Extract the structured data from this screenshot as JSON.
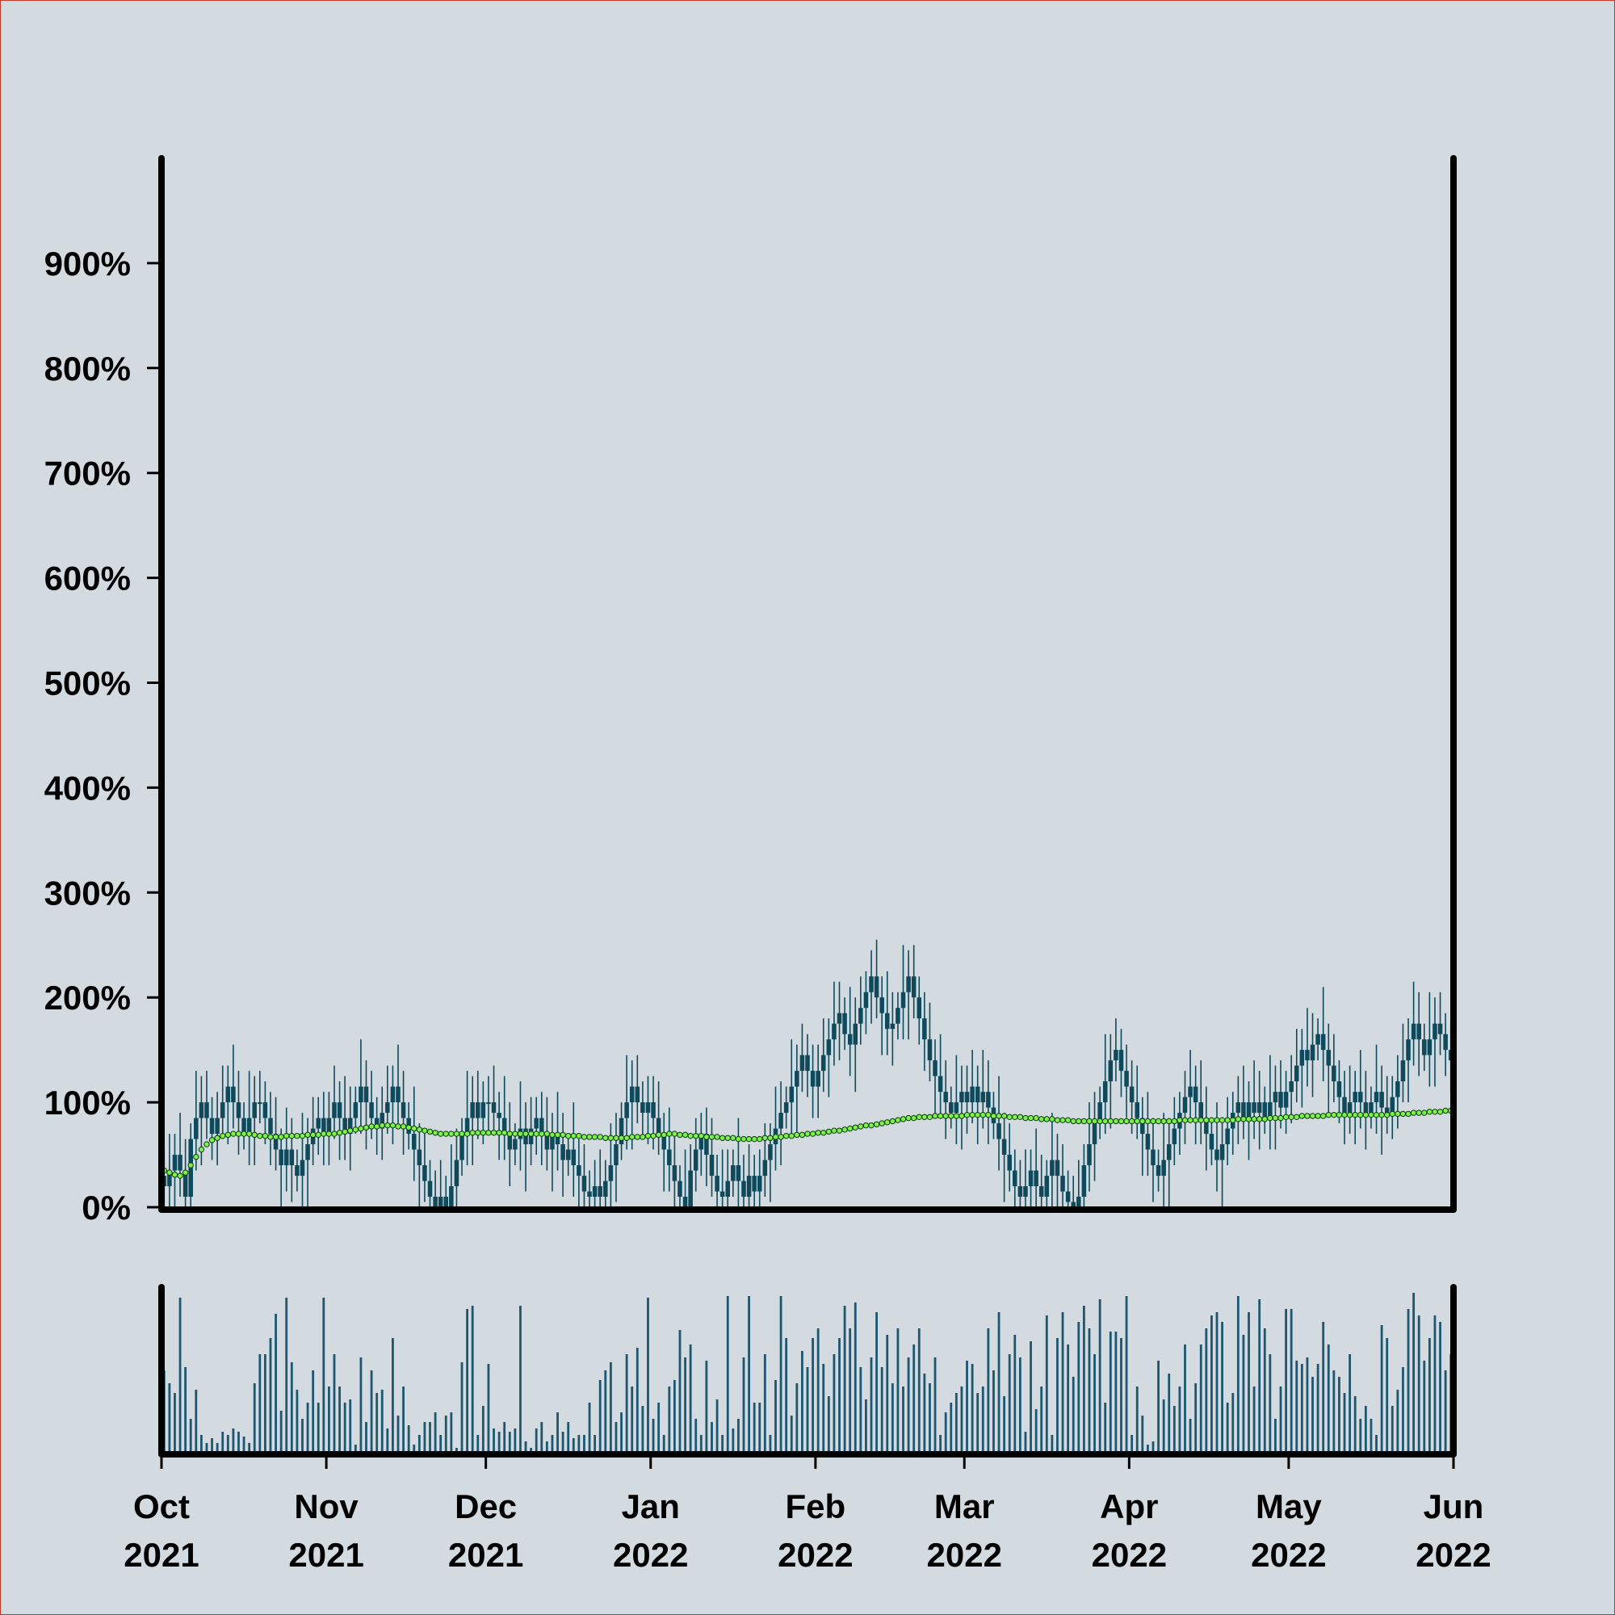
{
  "chart_data": {
    "type": "candlestick",
    "xlim": [
      "2021-10",
      "2022-06"
    ],
    "xticks": [
      {
        "value": "2021-10",
        "label": "Oct 2021"
      },
      {
        "value": "2021-11",
        "label": "Nov 2021"
      },
      {
        "value": "2021-12",
        "label": "Dec 2021"
      },
      {
        "value": "2022-01",
        "label": "Jan 2022"
      },
      {
        "value": "2022-02",
        "label": "Feb 2022"
      },
      {
        "value": "2022-03",
        "label": "Mar 2022"
      },
      {
        "value": "2022-04",
        "label": "Apr 2022"
      },
      {
        "value": "2022-05",
        "label": "May 2022"
      },
      {
        "value": "2022-06",
        "label": "Jun 2022"
      }
    ],
    "ylim": [
      0,
      1000
    ],
    "yticks": [
      {
        "value": 0,
        "label": "0%"
      },
      {
        "value": 100,
        "label": "100%"
      },
      {
        "value": 200,
        "label": "200%"
      },
      {
        "value": 300,
        "label": "300%"
      },
      {
        "value": 400,
        "label": "400%"
      },
      {
        "value": 500,
        "label": "500%"
      },
      {
        "value": 600,
        "label": "600%"
      },
      {
        "value": 700,
        "label": "700%"
      },
      {
        "value": 800,
        "label": "800%"
      },
      {
        "value": 900,
        "label": "900%"
      }
    ],
    "candles": {
      "color": "#0e4a5c",
      "open": [
        30,
        20,
        35,
        50,
        35,
        10,
        65,
        85,
        100,
        85,
        70,
        85,
        100,
        115,
        100,
        85,
        70,
        85,
        100,
        100,
        85,
        70,
        55,
        40,
        55,
        40,
        30,
        45,
        60,
        75,
        85,
        70,
        85,
        100,
        85,
        70,
        85,
        100,
        115,
        100,
        85,
        75,
        90,
        100,
        115,
        100,
        85,
        70,
        55,
        40,
        25,
        10,
        0,
        10,
        0,
        20,
        45,
        70,
        85,
        100,
        85,
        100,
        100,
        90,
        85,
        70,
        55,
        65,
        75,
        60,
        75,
        85,
        70,
        55,
        70,
        60,
        45,
        55,
        40,
        30,
        15,
        10,
        20,
        10,
        25,
        40,
        60,
        85,
        100,
        115,
        100,
        90,
        100,
        85,
        70,
        55,
        40,
        25,
        10,
        0,
        35,
        55,
        70,
        50,
        30,
        15,
        10,
        25,
        40,
        25,
        10,
        30,
        15,
        30,
        45,
        60,
        75,
        90,
        100,
        115,
        130,
        145,
        130,
        115,
        130,
        145,
        160,
        175,
        185,
        165,
        155,
        175,
        190,
        205,
        220,
        200,
        185,
        170,
        175,
        190,
        205,
        220,
        200,
        180,
        160,
        140,
        125,
        110,
        100,
        90,
        100,
        110,
        100,
        115,
        100,
        110,
        95,
        80,
        65,
        50,
        35,
        20,
        10,
        20,
        35,
        20,
        10,
        30,
        45,
        30,
        15,
        5,
        0,
        10,
        40,
        60,
        80,
        100,
        120,
        140,
        150,
        130,
        115,
        100,
        85,
        70,
        55,
        40,
        30,
        45,
        60,
        75,
        90,
        105,
        115,
        100,
        85,
        70,
        55,
        45,
        60,
        75,
        90,
        100,
        85,
        100,
        90,
        100,
        85,
        100,
        110,
        95,
        110,
        120,
        135,
        150,
        140,
        155,
        165,
        150,
        135,
        120,
        105,
        90,
        100,
        110,
        100,
        90,
        100,
        110,
        95,
        90,
        105,
        120,
        140,
        160,
        175,
        160,
        145,
        160,
        175,
        165,
        150
      ],
      "high": [
        55,
        70,
        70,
        90,
        65,
        80,
        130,
        125,
        130,
        105,
        110,
        135,
        135,
        155,
        130,
        100,
        130,
        125,
        130,
        120,
        110,
        105,
        75,
        95,
        85,
        55,
        90,
        85,
        105,
        105,
        110,
        110,
        135,
        120,
        125,
        115,
        115,
        160,
        140,
        130,
        105,
        115,
        135,
        135,
        155,
        130,
        100,
        115,
        80,
        70,
        45,
        35,
        45,
        30,
        60,
        75,
        85,
        130,
        125,
        130,
        120,
        125,
        135,
        110,
        125,
        100,
        80,
        120,
        100,
        105,
        105,
        110,
        105,
        90,
        110,
        90,
        70,
        100,
        65,
        60,
        35,
        45,
        55,
        45,
        80,
        90,
        100,
        145,
        140,
        145,
        120,
        125,
        125,
        120,
        90,
        95,
        70,
        40,
        55,
        60,
        85,
        90,
        95,
        85,
        50,
        55,
        55,
        55,
        85,
        50,
        60,
        50,
        55,
        80,
        80,
        115,
        120,
        115,
        160,
        155,
        175,
        165,
        155,
        155,
        180,
        180,
        215,
        215,
        200,
        210,
        200,
        220,
        225,
        245,
        255,
        220,
        225,
        205,
        205,
        250,
        245,
        250,
        220,
        205,
        195,
        160,
        165,
        140,
        115,
        145,
        135,
        135,
        150,
        135,
        150,
        140,
        110,
        125,
        90,
        80,
        55,
        45,
        55,
        55,
        75,
        50,
        45,
        90,
        70,
        60,
        35,
        30,
        45,
        60,
        100,
        110,
        115,
        165,
        165,
        180,
        170,
        155,
        140,
        135,
        105,
        110,
        85,
        55,
        90,
        85,
        105,
        110,
        130,
        150,
        135,
        140,
        115,
        85,
        100,
        85,
        105,
        110,
        125,
        135,
        120,
        140,
        130,
        115,
        145,
        135,
        140,
        130,
        145,
        170,
        170,
        190,
        185,
        180,
        210,
        175,
        165,
        140,
        130,
        135,
        130,
        150,
        130,
        115,
        155,
        135,
        125,
        125,
        145,
        175,
        180,
        215,
        205,
        175,
        205,
        200,
        205,
        185,
        175
      ],
      "low": [
        0,
        0,
        0,
        10,
        0,
        0,
        35,
        40,
        65,
        45,
        40,
        65,
        60,
        75,
        50,
        55,
        40,
        40,
        80,
        60,
        40,
        35,
        0,
        15,
        5,
        15,
        0,
        0,
        40,
        50,
        40,
        40,
        65,
        45,
        45,
        35,
        70,
        70,
        55,
        65,
        50,
        45,
        70,
        60,
        75,
        50,
        55,
        25,
        0,
        5,
        0,
        0,
        0,
        0,
        0,
        0,
        30,
        40,
        40,
        65,
        60,
        70,
        70,
        45,
        45,
        20,
        40,
        35,
        15,
        40,
        50,
        40,
        35,
        15,
        35,
        10,
        30,
        10,
        0,
        0,
        0,
        0,
        0,
        0,
        0,
        5,
        45,
        55,
        55,
        80,
        65,
        60,
        55,
        50,
        15,
        15,
        0,
        0,
        0,
        0,
        15,
        30,
        20,
        10,
        0,
        0,
        0,
        10,
        0,
        0,
        0,
        0,
        0,
        10,
        5,
        35,
        40,
        75,
        70,
        70,
        110,
        105,
        85,
        85,
        110,
        105,
        135,
        140,
        150,
        125,
        110,
        155,
        165,
        175,
        180,
        145,
        145,
        135,
        160,
        160,
        160,
        180,
        155,
        130,
        120,
        85,
        85,
        65,
        75,
        60,
        55,
        70,
        80,
        60,
        75,
        60,
        65,
        35,
        5,
        15,
        0,
        0,
        0,
        0,
        0,
        0,
        0,
        0,
        0,
        0,
        0,
        0,
        0,
        0,
        15,
        25,
        65,
        70,
        75,
        120,
        105,
        85,
        70,
        65,
        30,
        30,
        5,
        15,
        0,
        0,
        40,
        50,
        60,
        85,
        60,
        60,
        35,
        40,
        15,
        0,
        40,
        50,
        60,
        65,
        45,
        65,
        55,
        70,
        55,
        55,
        75,
        70,
        80,
        100,
        95,
        115,
        105,
        140,
        120,
        90,
        100,
        80,
        60,
        70,
        60,
        75,
        55,
        75,
        70,
        50,
        70,
        65,
        75,
        100,
        100,
        135,
        125,
        130,
        115,
        115,
        145,
        125,
        110
      ],
      "close": [
        20,
        35,
        50,
        35,
        10,
        65,
        85,
        100,
        85,
        70,
        85,
        100,
        115,
        100,
        85,
        70,
        85,
        100,
        100,
        85,
        70,
        55,
        40,
        55,
        40,
        30,
        45,
        60,
        75,
        85,
        70,
        85,
        100,
        85,
        70,
        85,
        100,
        115,
        100,
        85,
        75,
        90,
        100,
        115,
        100,
        85,
        70,
        55,
        40,
        25,
        10,
        0,
        10,
        0,
        20,
        45,
        70,
        85,
        100,
        85,
        100,
        100,
        90,
        85,
        70,
        55,
        65,
        75,
        60,
        75,
        85,
        70,
        55,
        70,
        60,
        45,
        55,
        40,
        30,
        15,
        10,
        20,
        10,
        25,
        40,
        60,
        85,
        100,
        115,
        100,
        90,
        100,
        85,
        70,
        55,
        40,
        25,
        10,
        0,
        35,
        55,
        70,
        50,
        30,
        15,
        10,
        25,
        40,
        25,
        10,
        30,
        15,
        30,
        45,
        60,
        75,
        90,
        100,
        115,
        130,
        145,
        130,
        115,
        130,
        145,
        160,
        175,
        185,
        165,
        155,
        175,
        190,
        205,
        220,
        200,
        185,
        170,
        175,
        190,
        205,
        220,
        200,
        180,
        160,
        140,
        125,
        110,
        100,
        90,
        100,
        110,
        100,
        115,
        100,
        110,
        95,
        80,
        65,
        50,
        35,
        20,
        10,
        20,
        35,
        20,
        10,
        30,
        45,
        30,
        15,
        5,
        0,
        10,
        40,
        60,
        80,
        100,
        120,
        140,
        150,
        130,
        115,
        100,
        85,
        70,
        55,
        40,
        30,
        45,
        60,
        75,
        90,
        105,
        115,
        100,
        85,
        70,
        55,
        45,
        60,
        75,
        90,
        100,
        85,
        100,
        90,
        100,
        85,
        100,
        110,
        95,
        110,
        120,
        135,
        150,
        140,
        155,
        165,
        150,
        135,
        120,
        105,
        90,
        100,
        110,
        100,
        90,
        100,
        110,
        95,
        90,
        105,
        120,
        140,
        160,
        175,
        160,
        145,
        160,
        175,
        165,
        150,
        140
      ]
    },
    "moving_average": {
      "color": "#7cf24a",
      "values": [
        35,
        33,
        31,
        30,
        33,
        40,
        48,
        55,
        60,
        64,
        66,
        68,
        69,
        70,
        70,
        70,
        70,
        69,
        68,
        68,
        67,
        67,
        67,
        68,
        68,
        68,
        68,
        69,
        69,
        69,
        70,
        70,
        70,
        71,
        72,
        73,
        74,
        75,
        76,
        77,
        77,
        78,
        78,
        78,
        77,
        77,
        76,
        75,
        74,
        73,
        72,
        71,
        70,
        70,
        70,
        70,
        70,
        70,
        71,
        71,
        71,
        71,
        71,
        71,
        71,
        70,
        70,
        70,
        70,
        70,
        70,
        70,
        70,
        69,
        69,
        69,
        68,
        68,
        68,
        67,
        67,
        67,
        67,
        66,
        66,
        66,
        66,
        66,
        67,
        67,
        67,
        68,
        68,
        69,
        69,
        70,
        70,
        69,
        69,
        68,
        68,
        68,
        67,
        67,
        67,
        66,
        66,
        66,
        65,
        65,
        65,
        65,
        65,
        66,
        66,
        67,
        67,
        68,
        68,
        69,
        69,
        70,
        70,
        71,
        71,
        72,
        73,
        73,
        74,
        75,
        76,
        77,
        78,
        78,
        79,
        80,
        81,
        82,
        83,
        84,
        85,
        85,
        86,
        86,
        86,
        87,
        87,
        87,
        87,
        87,
        87,
        88,
        88,
        88,
        88,
        88,
        87,
        87,
        87,
        86,
        86,
        86,
        85,
        85,
        85,
        84,
        84,
        84,
        83,
        83,
        83,
        82,
        82,
        82,
        82,
        82,
        82,
        82,
        82,
        82,
        82,
        82,
        82,
        82,
        82,
        82,
        82,
        82,
        82,
        82,
        82,
        83,
        83,
        83,
        83,
        83,
        83,
        83,
        83,
        83,
        83,
        83,
        84,
        84,
        84,
        84,
        84,
        84,
        85,
        85,
        85,
        86,
        86,
        86,
        87,
        87,
        87,
        87,
        87,
        88,
        88,
        88,
        88,
        88,
        88,
        88,
        88,
        88,
        88,
        88,
        88,
        89,
        89,
        89,
        89,
        90,
        90,
        90,
        91,
        91,
        91,
        92,
        92
      ]
    },
    "volume": {
      "color": "#1d5670",
      "ylim": [
        0,
        100
      ],
      "values": [
        50,
        42,
        36,
        95,
        52,
        20,
        38,
        10,
        5,
        8,
        5,
        12,
        10,
        14,
        12,
        9,
        5,
        42,
        60,
        60,
        70,
        85,
        25,
        95,
        55,
        38,
        20,
        30,
        50,
        30,
        95,
        40,
        60,
        40,
        30,
        32,
        4,
        58,
        18,
        50,
        36,
        38,
        14,
        70,
        22,
        40,
        16,
        4,
        10,
        18,
        18,
        24,
        10,
        22,
        24,
        2,
        55,
        88,
        90,
        10,
        28,
        54,
        14,
        12,
        18,
        12,
        14,
        90,
        6,
        2,
        14,
        18,
        6,
        10,
        24,
        12,
        18,
        8,
        10,
        10,
        30,
        10,
        44,
        50,
        55,
        18,
        24,
        60,
        40,
        64,
        28,
        95,
        20,
        30,
        10,
        40,
        44,
        75,
        58,
        66,
        20,
        10,
        56,
        18,
        32,
        10,
        96,
        14,
        20,
        58,
        96,
        30,
        30,
        60,
        10,
        44,
        96,
        70,
        22,
        42,
        62,
        52,
        70,
        76,
        54,
        34,
        60,
        70,
        90,
        76,
        92,
        52,
        32,
        58,
        86,
        52,
        72,
        42,
        76,
        40,
        58,
        66,
        76,
        48,
        42,
        58,
        10,
        24,
        30,
        36,
        40,
        56,
        54,
        36,
        40,
        76,
        50,
        86,
        34,
        60,
        72,
        58,
        12,
        68,
        26,
        40,
        84,
        10,
        70,
        86,
        66,
        46,
        80,
        90,
        76,
        60,
        94,
        30,
        74,
        74,
        70,
        96,
        10,
        40,
        22,
        4,
        6,
        56,
        32,
        48,
        28,
        40,
        66,
        20,
        42,
        66,
        76,
        84,
        86,
        80,
        30,
        36,
        96,
        72,
        86,
        40,
        94,
        76,
        60,
        20,
        40,
        88,
        88,
        56,
        54,
        58,
        46,
        54,
        80,
        66,
        50,
        46,
        36,
        60,
        34,
        20,
        28,
        20,
        10,
        78,
        70,
        28,
        38,
        52,
        88,
        98,
        84,
        56,
        70,
        84,
        80,
        50,
        60
      ]
    }
  }
}
